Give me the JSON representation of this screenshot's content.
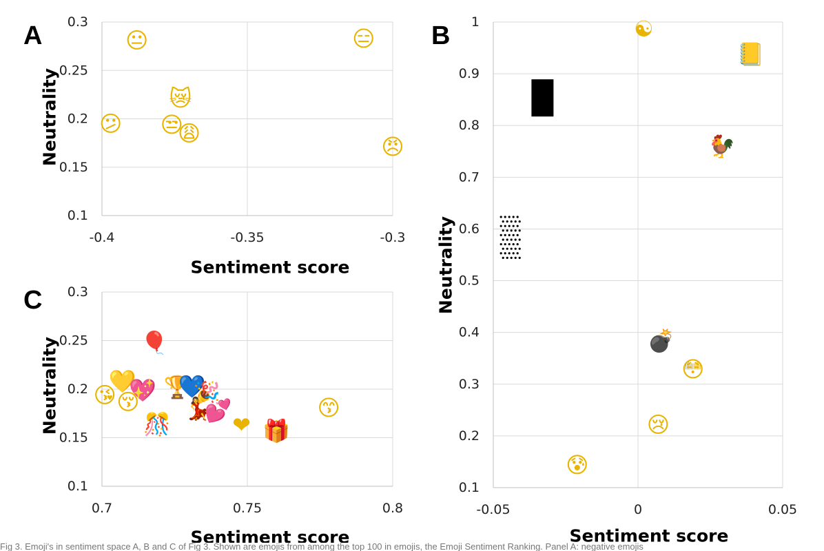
{
  "caption_text": {
    "lead": "Fig 3. Emoji's in sentiment space A, B and C of Fig 3. Shown are emojis from among the top 100 in emojis, the Emoji Sentiment Ranking. Panel A: negative emojis",
    "rest": ""
  },
  "chart_data": [
    {
      "panel": "A",
      "type": "scatter",
      "xlabel": "Sentiment score",
      "ylabel": "Neutrality",
      "xlim": [
        -0.4,
        -0.3
      ],
      "ylim": [
        0.1,
        0.3
      ],
      "xticks": [
        "-0.4",
        "-0.35",
        "-0.3"
      ],
      "yticks": [
        "0.1",
        "0.15",
        "0.2",
        "0.25",
        "0.3"
      ],
      "grid": true,
      "points": [
        {
          "x": -0.388,
          "y": 0.281,
          "emoji": "😐"
        },
        {
          "x": -0.31,
          "y": 0.283,
          "emoji": "😑"
        },
        {
          "x": -0.373,
          "y": 0.221,
          "emoji": "😿"
        },
        {
          "x": -0.397,
          "y": 0.195,
          "emoji": "😕"
        },
        {
          "x": -0.376,
          "y": 0.194,
          "emoji": "😒"
        },
        {
          "x": -0.37,
          "y": 0.185,
          "emoji": "😩"
        },
        {
          "x": -0.3,
          "y": 0.171,
          "emoji": "😠"
        }
      ]
    },
    {
      "panel": "B",
      "type": "scatter",
      "xlabel": "Sentiment score",
      "ylabel": "Neutrality",
      "xlim": [
        -0.05,
        0.05
      ],
      "ylim": [
        0.1,
        1.0
      ],
      "xticks": [
        "-0.05",
        "0",
        "0.05"
      ],
      "yticks": [
        "0.1",
        "0.2",
        "0.3",
        "0.4",
        "0.5",
        "0.6",
        "0.7",
        "0.8",
        "0.9",
        "1"
      ],
      "grid": true,
      "points": [
        {
          "x": 0.002,
          "y": 0.987,
          "emoji": "☯"
        },
        {
          "x": 0.039,
          "y": 0.938,
          "emoji": "📒"
        },
        {
          "x": -0.033,
          "y": 0.852,
          "emoji": "black-rectangle"
        },
        {
          "x": 0.029,
          "y": 0.76,
          "emoji": "🐓"
        },
        {
          "x": -0.044,
          "y": 0.578,
          "emoji": "dotted-rectangle"
        },
        {
          "x": 0.008,
          "y": 0.384,
          "emoji": "💣"
        },
        {
          "x": 0.019,
          "y": 0.329,
          "emoji": "😳"
        },
        {
          "x": 0.007,
          "y": 0.222,
          "emoji": "😢"
        },
        {
          "x": -0.021,
          "y": 0.144,
          "emoji": "😰"
        }
      ]
    },
    {
      "panel": "C",
      "type": "scatter",
      "xlabel": "Sentiment score",
      "ylabel": "Neutrality",
      "xlim": [
        0.7,
        0.8
      ],
      "ylim": [
        0.1,
        0.3
      ],
      "xticks": [
        "0.7",
        "0.75",
        "0.8"
      ],
      "yticks": [
        "0.1",
        "0.15",
        "0.2",
        "0.25",
        "0.3"
      ],
      "grid": true,
      "points": [
        {
          "x": 0.718,
          "y": 0.248,
          "emoji": "🎈"
        },
        {
          "x": 0.707,
          "y": 0.208,
          "emoji": "💛"
        },
        {
          "x": 0.714,
          "y": 0.199,
          "emoji": "💖"
        },
        {
          "x": 0.701,
          "y": 0.194,
          "emoji": "😘"
        },
        {
          "x": 0.709,
          "y": 0.187,
          "emoji": "😚"
        },
        {
          "x": 0.726,
          "y": 0.202,
          "emoji": "🏆"
        },
        {
          "x": 0.731,
          "y": 0.203,
          "emoji": "💙"
        },
        {
          "x": 0.736,
          "y": 0.196,
          "emoji": "🎉"
        },
        {
          "x": 0.733,
          "y": 0.18,
          "emoji": "💃"
        },
        {
          "x": 0.74,
          "y": 0.178,
          "emoji": "💕"
        },
        {
          "x": 0.748,
          "y": 0.163,
          "emoji": "❤"
        },
        {
          "x": 0.719,
          "y": 0.164,
          "emoji": "🎊"
        },
        {
          "x": 0.76,
          "y": 0.157,
          "emoji": "🎁"
        },
        {
          "x": 0.778,
          "y": 0.181,
          "emoji": "😙"
        }
      ]
    }
  ]
}
